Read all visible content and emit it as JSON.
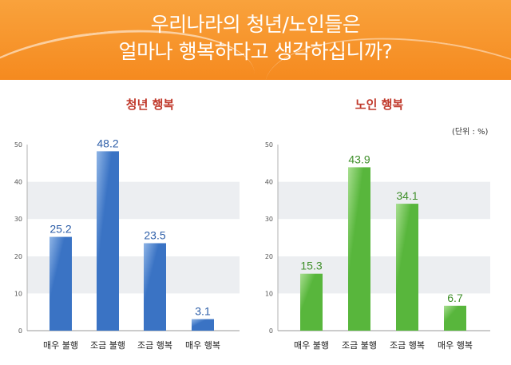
{
  "header": {
    "title_line1": "우리나라의 청년/노인들은",
    "title_line2": "얼마나 행복하다고 생각하십니까?"
  },
  "unit_label": "(단위 : %)",
  "colors": {
    "header_orange": "#f7931e",
    "youth_bar": "#3a73c4",
    "elderly_bar": "#58b63c",
    "panel_title": "#c0392b"
  },
  "chart_data": [
    {
      "type": "bar",
      "title": "청년 행복",
      "categories": [
        "매우 불행",
        "조금 불행",
        "조금 행복",
        "매우 행복"
      ],
      "values": [
        25.2,
        48.2,
        23.5,
        3.1
      ],
      "ylim": [
        0,
        50
      ],
      "yticks": [
        0,
        10,
        20,
        30,
        40,
        50
      ],
      "grid": "alternating bands"
    },
    {
      "type": "bar",
      "title": "노인 행복",
      "categories": [
        "매우 불행",
        "조금 불행",
        "조금 행복",
        "매우 행복"
      ],
      "values": [
        15.3,
        43.9,
        34.1,
        6.7
      ],
      "ylim": [
        0,
        50
      ],
      "yticks": [
        0,
        10,
        20,
        30,
        40,
        50
      ],
      "grid": "alternating bands"
    }
  ]
}
